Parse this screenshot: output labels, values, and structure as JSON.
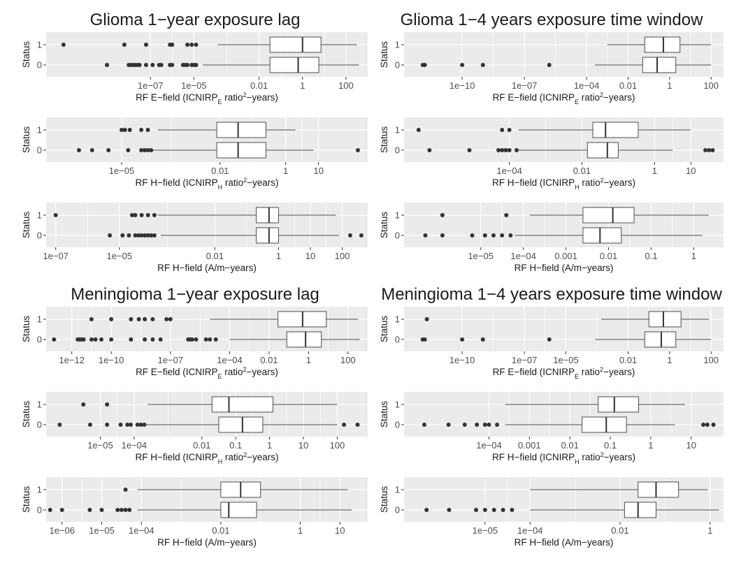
{
  "section_titles": [
    "Glioma 1−year exposure lag",
    "Glioma 1−4 years exposure time window",
    "Meningioma 1−year exposure lag",
    "Meningioma 1−4 years exposure time window"
  ],
  "x_labels": {
    "efield": {
      "pre": "RF E−field (ICNIRP",
      "sub": "E",
      "mid": " ratio",
      "sup": "2",
      "post": "−years)"
    },
    "hfield_ratio": {
      "pre": "RF H−field (ICNIRP",
      "sub": "H",
      "mid": " ratio",
      "sup": "2",
      "post": "−years)"
    },
    "hfield_am": {
      "pre": "RF H−field (A/m−years)",
      "sub": "",
      "mid": "",
      "sup": "",
      "post": ""
    }
  },
  "colors": {
    "panel": "#ebebeb",
    "grid": "#ffffff",
    "box_fill": "#ffffff",
    "line": "#4d4d4d",
    "point": "#333333"
  },
  "chart_data": [
    {
      "type": "boxplot",
      "group": "Glioma",
      "window": "1-year exposure lag",
      "x_scale": "log10",
      "x_label": "efield",
      "y_label": "Status",
      "x_range_log10": [
        -11.8,
        3.0
      ],
      "x_ticks": [
        [
          "1e−07",
          -7
        ],
        [
          "1e−05",
          -5
        ],
        [
          "0.01",
          -2
        ],
        [
          "1",
          0
        ],
        [
          "100",
          2
        ]
      ],
      "boxes": [
        {
          "status": "1",
          "whisker_low": -3.9,
          "q1": -1.5,
          "median": 0.0,
          "q3": 0.85,
          "whisker_high": 2.5,
          "outliers": [
            -11,
            -8.2,
            -7.2,
            -6.1,
            -6.0,
            -5.3,
            -5.1,
            -4.9
          ]
        },
        {
          "status": "0",
          "whisker_low": -4.6,
          "q1": -1.5,
          "median": -0.2,
          "q3": 0.75,
          "whisker_high": 2.6,
          "outliers": [
            -9.0,
            -8.0,
            -7.9,
            -7.8,
            -7.7,
            -7.6,
            -7.5,
            -7.2,
            -6.9,
            -6.6,
            -6.5,
            -6.1,
            -6.0,
            -5.5,
            -5.4,
            -5.3,
            -5.1,
            -5.0,
            -4.9
          ]
        }
      ]
    },
    {
      "type": "boxplot",
      "group": "Glioma",
      "window": "1-4 years exposure time window",
      "x_scale": "log10",
      "x_label": "efield",
      "y_label": "Status",
      "x_range_log10": [
        -12.8,
        2.6
      ],
      "x_ticks": [
        [
          "1e−10",
          -10
        ],
        [
          "1e−07",
          -7
        ],
        [
          "1e−04",
          -4
        ],
        [
          "0.01",
          -2
        ],
        [
          "1",
          0
        ],
        [
          "100",
          2
        ]
      ],
      "boxes": [
        {
          "status": "1",
          "whisker_low": -3.0,
          "q1": -1.2,
          "median": -0.3,
          "q3": 0.5,
          "whisker_high": 2.0,
          "outliers": []
        },
        {
          "status": "0",
          "whisker_low": -3.6,
          "q1": -1.3,
          "median": -0.6,
          "q3": 0.3,
          "whisker_high": 2.0,
          "outliers": [
            -11.9,
            -11.8,
            -10.0,
            -9.0,
            -5.8
          ]
        }
      ]
    },
    {
      "type": "boxplot",
      "group": "Glioma",
      "window": "1-year exposure lag",
      "x_scale": "log10",
      "x_label": "hfield_ratio",
      "y_label": "Status",
      "x_range_log10": [
        -7.3,
        2.5
      ],
      "x_ticks": [
        [
          "1e−05",
          -5
        ],
        [
          "0.01",
          -2
        ],
        [
          "1",
          0
        ],
        [
          "10",
          1
        ]
      ],
      "boxes": [
        {
          "status": "1",
          "whisker_low": -3.9,
          "q1": -2.1,
          "median": -1.45,
          "q3": -0.6,
          "whisker_high": 0.3,
          "outliers": [
            -5.0,
            -4.9,
            -4.75,
            -4.4,
            -4.2
          ]
        },
        {
          "status": "0",
          "whisker_low": -4.1,
          "q1": -2.1,
          "median": -1.45,
          "q3": -0.6,
          "whisker_high": 0.85,
          "outliers": [
            -6.3,
            -5.9,
            -5.4,
            -4.8,
            -4.4,
            -4.3,
            -4.2,
            -4.1,
            2.2
          ]
        }
      ]
    },
    {
      "type": "boxplot",
      "group": "Glioma",
      "window": "1-4 years exposure time window",
      "x_scale": "log10",
      "x_label": "hfield_ratio",
      "y_label": "Status",
      "x_range_log10": [
        -6.9,
        1.9
      ],
      "x_ticks": [
        [
          "1e−04",
          -4
        ],
        [
          "0.01",
          -2
        ],
        [
          "1",
          0
        ],
        [
          "10",
          1
        ]
      ],
      "boxes": [
        {
          "status": "1",
          "whisker_low": -3.75,
          "q1": -1.7,
          "median": -1.35,
          "q3": -0.45,
          "whisker_high": 1.0,
          "outliers": [
            -6.5,
            -4.2,
            -4.0
          ]
        },
        {
          "status": "0",
          "whisker_low": -3.75,
          "q1": -1.85,
          "median": -1.3,
          "q3": -1.0,
          "whisker_high": 0.5,
          "outliers": [
            -6.2,
            -5.1,
            -4.3,
            -4.2,
            -4.1,
            -4.0,
            -3.8,
            1.4,
            1.5,
            1.6
          ]
        }
      ]
    },
    {
      "type": "boxplot",
      "group": "Glioma",
      "window": "1-year exposure lag",
      "x_scale": "log10",
      "x_label": "hfield_am",
      "y_label": "Status",
      "x_range_log10": [
        -7.3,
        2.8
      ],
      "x_ticks": [
        [
          "1e−07",
          -7
        ],
        [
          "1e−05",
          -5
        ],
        [
          "0.01",
          -2
        ],
        [
          "1",
          0
        ],
        [
          "10",
          1
        ],
        [
          "100",
          2
        ]
      ],
      "boxes": [
        {
          "status": "1",
          "whisker_low": -3.8,
          "q1": -0.7,
          "median": -0.3,
          "q3": 0.0,
          "whisker_high": 1.8,
          "outliers": [
            -7.0,
            -4.6,
            -4.5,
            -4.3,
            -4.1,
            -3.9
          ]
        },
        {
          "status": "0",
          "whisker_low": -3.7,
          "q1": -0.7,
          "median": -0.3,
          "q3": 0.0,
          "whisker_high": 1.9,
          "outliers": [
            -5.3,
            -4.9,
            -4.7,
            -4.5,
            -4.4,
            -4.3,
            -4.2,
            -4.1,
            -4.0,
            -3.9,
            2.25,
            2.6
          ]
        }
      ]
    },
    {
      "type": "boxplot",
      "group": "Glioma",
      "window": "1-4 years exposure time window",
      "x_scale": "log10",
      "x_label": "hfield_am",
      "y_label": "Status",
      "x_range_log10": [
        -6.8,
        0.7
      ],
      "x_ticks": [
        [
          "1e−05",
          -5
        ],
        [
          "1e−04",
          -4
        ],
        [
          "0.001",
          -3
        ],
        [
          "0.01",
          -2
        ],
        [
          "0.1",
          -1
        ],
        [
          "1",
          0
        ]
      ],
      "boxes": [
        {
          "status": "1",
          "whisker_low": -3.85,
          "q1": -2.6,
          "median": -1.9,
          "q3": -1.4,
          "whisker_high": 0.35,
          "outliers": [
            -5.9,
            -4.4
          ]
        },
        {
          "status": "0",
          "whisker_low": -4.2,
          "q1": -2.6,
          "median": -2.2,
          "q3": -1.7,
          "whisker_high": 0.2,
          "outliers": [
            -6.3,
            -5.9,
            -5.2,
            -4.9,
            -4.7,
            -4.5,
            -4.3
          ]
        }
      ]
    },
    {
      "type": "boxplot",
      "group": "Meningioma",
      "window": "1-year exposure lag",
      "x_scale": "log10",
      "x_label": "efield",
      "y_label": "Status",
      "x_range_log10": [
        -13.3,
        3.0
      ],
      "x_ticks": [
        [
          "1e−12",
          -12
        ],
        [
          "1e−10",
          -10
        ],
        [
          "1e−07",
          -7
        ],
        [
          "1e−04",
          -4
        ],
        [
          "0.01",
          -2
        ],
        [
          "1",
          0
        ],
        [
          "100",
          2
        ]
      ],
      "boxes": [
        {
          "status": "1",
          "whisker_low": -5.0,
          "q1": -1.55,
          "median": -0.3,
          "q3": 0.9,
          "whisker_high": 2.5,
          "outliers": [
            -11.0,
            -10.0,
            -9.0,
            -8.6,
            -8.3,
            -7.9,
            -7.2,
            -7.0
          ]
        },
        {
          "status": "0",
          "whisker_low": -4.0,
          "q1": -1.1,
          "median": -0.15,
          "q3": 0.65,
          "whisker_high": 2.6,
          "outliers": [
            -12.9,
            -11.7,
            -11.6,
            -11.5,
            -11.4,
            -11.0,
            -10.8,
            -10.5,
            -10.0,
            -9.0,
            -8.3,
            -7.9,
            -7.5,
            -6.1,
            -6.0,
            -5.9,
            -5.7,
            -5.2,
            -5.0,
            -4.7
          ]
        }
      ]
    },
    {
      "type": "boxplot",
      "group": "Meningioma",
      "window": "1-4 years exposure time window",
      "x_scale": "log10",
      "x_label": "efield",
      "y_label": "Status",
      "x_range_log10": [
        -12.8,
        2.6
      ],
      "x_ticks": [
        [
          "1e−10",
          -10
        ],
        [
          "1e−07",
          -7
        ],
        [
          "1e−05",
          -5
        ],
        [
          "0.01",
          -2
        ],
        [
          "1",
          0
        ],
        [
          "100",
          2
        ]
      ],
      "boxes": [
        {
          "status": "1",
          "whisker_low": -3.3,
          "q1": -1.0,
          "median": -0.3,
          "q3": 0.55,
          "whisker_high": 1.9,
          "outliers": [
            -11.7
          ]
        },
        {
          "status": "0",
          "whisker_low": -3.6,
          "q1": -1.2,
          "median": -0.4,
          "q3": 0.3,
          "whisker_high": 2.0,
          "outliers": [
            -11.9,
            -11.8,
            -10.0,
            -9.0,
            -5.8
          ]
        }
      ]
    },
    {
      "type": "boxplot",
      "group": "Meningioma",
      "window": "1-year exposure lag",
      "x_scale": "log10",
      "x_label": "hfield_ratio",
      "y_label": "Status",
      "x_range_log10": [
        -6.6,
        2.9
      ],
      "x_ticks": [
        [
          "1e−05",
          -5
        ],
        [
          "1e−04",
          -4
        ],
        [
          "0.01",
          -2
        ],
        [
          "0.1",
          -1
        ],
        [
          "1",
          0
        ],
        [
          "10",
          1
        ],
        [
          "100",
          2
        ]
      ],
      "boxes": [
        {
          "status": "1",
          "whisker_low": -3.6,
          "q1": -1.7,
          "median": -1.2,
          "q3": 0.1,
          "whisker_high": 2.0,
          "outliers": [
            -5.5,
            -4.8
          ]
        },
        {
          "status": "0",
          "whisker_low": -3.9,
          "q1": -1.5,
          "median": -0.8,
          "q3": -0.2,
          "whisker_high": 2.0,
          "outliers": [
            -6.2,
            -5.3,
            -4.8,
            -4.4,
            -4.2,
            -4.1,
            -3.9,
            -3.8,
            -3.7,
            2.2,
            2.6
          ]
        }
      ]
    },
    {
      "type": "boxplot",
      "group": "Meningioma",
      "window": "1-4 years exposure time window",
      "x_scale": "log10",
      "x_label": "hfield_ratio",
      "y_label": "Status",
      "x_range_log10": [
        -6.1,
        1.8
      ],
      "x_ticks": [
        [
          "1e−04",
          -4
        ],
        [
          "0.001",
          -3
        ],
        [
          "0.01",
          -2
        ],
        [
          "0.1",
          -1
        ],
        [
          "1",
          0
        ],
        [
          "10",
          1
        ]
      ],
      "boxes": [
        {
          "status": "1",
          "whisker_low": -3.6,
          "q1": -1.3,
          "median": -0.9,
          "q3": -0.3,
          "whisker_high": 0.85,
          "outliers": []
        },
        {
          "status": "0",
          "whisker_low": -3.6,
          "q1": -1.7,
          "median": -1.1,
          "q3": -0.6,
          "whisker_high": 0.6,
          "outliers": [
            -5.6,
            -5.0,
            -4.6,
            -4.3,
            -4.1,
            -4.0,
            -3.8,
            1.3,
            1.4,
            1.55
          ]
        }
      ]
    },
    {
      "type": "boxplot",
      "group": "Meningioma",
      "window": "1-year exposure lag",
      "x_scale": "log10",
      "x_label": "hfield_am",
      "y_label": "Status",
      "x_range_log10": [
        -6.4,
        1.7
      ],
      "x_ticks": [
        [
          "1e−06",
          -6
        ],
        [
          "1e−05",
          -5
        ],
        [
          "1e−04",
          -4
        ],
        [
          "0.01",
          -2
        ],
        [
          "1",
          0
        ],
        [
          "10",
          1
        ]
      ],
      "boxes": [
        {
          "status": "1",
          "whisker_low": -4.1,
          "q1": -2.0,
          "median": -1.5,
          "q3": -1.0,
          "whisker_high": 1.2,
          "outliers": [
            -4.4
          ]
        },
        {
          "status": "0",
          "whisker_low": -4.1,
          "q1": -2.0,
          "median": -1.8,
          "q3": -1.1,
          "whisker_high": 1.3,
          "outliers": [
            -6.3,
            -6.0,
            -5.3,
            -5.0,
            -4.6,
            -4.5,
            -4.4,
            -4.3
          ]
        }
      ]
    },
    {
      "type": "boxplot",
      "group": "Meningioma",
      "window": "1-4 years exposure time window",
      "x_scale": "log10",
      "x_label": "hfield_am",
      "y_label": "Status",
      "x_range_log10": [
        -6.8,
        0.3
      ],
      "x_ticks": [
        [
          "1e−05",
          -5
        ],
        [
          "1e−04",
          -4
        ],
        [
          "0.01",
          -2
        ],
        [
          "1",
          0
        ]
      ],
      "boxes": [
        {
          "status": "1",
          "whisker_low": -4.0,
          "q1": -1.6,
          "median": -1.2,
          "q3": -0.7,
          "whisker_high": -0.05,
          "outliers": []
        },
        {
          "status": "0",
          "whisker_low": -4.0,
          "q1": -1.9,
          "median": -1.6,
          "q3": -1.2,
          "whisker_high": 0.2,
          "outliers": [
            -6.3,
            -5.8,
            -5.2,
            -5.0,
            -4.8,
            -4.6,
            -4.4
          ]
        }
      ]
    }
  ]
}
